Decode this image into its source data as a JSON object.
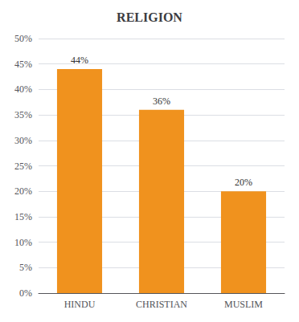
{
  "chart_data": {
    "type": "bar",
    "title": "RELIGION",
    "categories": [
      "HINDU",
      "CHRISTIAN",
      "MUSLIM"
    ],
    "values": [
      44,
      36,
      20
    ],
    "value_labels": [
      "44%",
      "36%",
      "20%"
    ],
    "data_labels": true,
    "color": "#F0921E",
    "ylim": [
      0,
      50
    ],
    "yticks": [
      {
        "value": 0,
        "label": "0%"
      },
      {
        "value": 5,
        "label": "5%"
      },
      {
        "value": 10,
        "label": "10%"
      },
      {
        "value": 15,
        "label": "15%"
      },
      {
        "value": 20,
        "label": "20%"
      },
      {
        "value": 25,
        "label": "25%"
      },
      {
        "value": 30,
        "label": "30%"
      },
      {
        "value": 35,
        "label": "35%"
      },
      {
        "value": 40,
        "label": "40%"
      },
      {
        "value": 45,
        "label": "45%"
      },
      {
        "value": 50,
        "label": "50%"
      }
    ],
    "grid": true
  }
}
